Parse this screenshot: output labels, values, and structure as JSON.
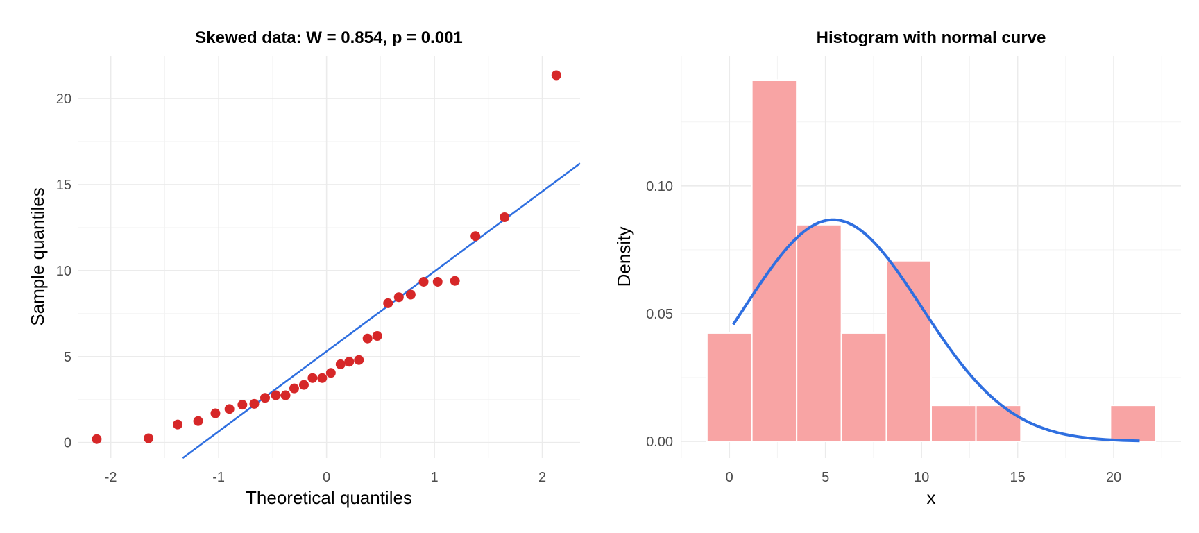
{
  "chart_data": [
    {
      "type": "scatter",
      "title": "Skewed data: W = 0.854, p = 0.001",
      "xlabel": "Theoretical quantiles",
      "ylabel": "Sample quantiles",
      "xlim": [
        -2.3,
        2.35
      ],
      "ylim": [
        -0.9,
        22.5
      ],
      "xticks": [
        -2,
        -1,
        0,
        1,
        2
      ],
      "yticks": [
        0,
        5,
        10,
        15,
        20
      ],
      "grid": true,
      "point_color": "#d62728",
      "line_color": "#2f6fe0",
      "points": {
        "x": [
          -2.13,
          -1.65,
          -1.38,
          -1.19,
          -1.03,
          -0.9,
          -0.78,
          -0.67,
          -0.57,
          -0.47,
          -0.38,
          -0.3,
          -0.21,
          -0.13,
          -0.04,
          0.04,
          0.13,
          0.21,
          0.3,
          0.38,
          0.47,
          0.57,
          0.67,
          0.78,
          0.9,
          1.03,
          1.19,
          1.38,
          1.65,
          2.13
        ],
        "y": [
          0.2,
          0.25,
          1.05,
          1.25,
          1.7,
          1.95,
          2.2,
          2.25,
          2.6,
          2.75,
          2.75,
          3.15,
          3.35,
          3.75,
          3.75,
          4.05,
          4.55,
          4.7,
          4.8,
          6.05,
          6.2,
          8.1,
          8.45,
          8.6,
          9.35,
          9.35,
          9.4,
          12.0,
          13.1,
          21.35
        ]
      },
      "reference_line": {
        "intercept": 5.3,
        "slope": 4.65
      }
    },
    {
      "type": "bar",
      "title": "Histogram with normal curve",
      "xlabel": "x",
      "ylabel": "Density",
      "xlim": [
        -2.5,
        23.5
      ],
      "ylim": [
        -0.0065,
        0.151
      ],
      "xticks": [
        0,
        5,
        10,
        15,
        20
      ],
      "yticks": [
        0.0,
        0.05,
        0.1
      ],
      "ytick_labels": [
        "0.00",
        "0.05",
        "0.10"
      ],
      "grid": true,
      "bar_color": "#f8a4a4",
      "curve_color": "#2f6fe0",
      "bins": [
        {
          "start": -1.17,
          "end": 1.17,
          "density": 0.0424
        },
        {
          "start": 1.17,
          "end": 3.5,
          "density": 0.1414
        },
        {
          "start": 3.5,
          "end": 5.83,
          "density": 0.0848
        },
        {
          "start": 5.83,
          "end": 8.17,
          "density": 0.0424
        },
        {
          "start": 8.17,
          "end": 10.5,
          "density": 0.0707
        },
        {
          "start": 10.5,
          "end": 12.83,
          "density": 0.0141
        },
        {
          "start": 12.83,
          "end": 15.17,
          "density": 0.0141
        },
        {
          "start": 15.17,
          "end": 17.5,
          "density": 0
        },
        {
          "start": 17.5,
          "end": 19.83,
          "density": 0
        },
        {
          "start": 19.83,
          "end": 22.17,
          "density": 0.0141
        }
      ],
      "normal_curve": {
        "mean": 5.4,
        "sd": 4.6,
        "x_range": [
          0.2,
          21.35
        ]
      }
    }
  ]
}
